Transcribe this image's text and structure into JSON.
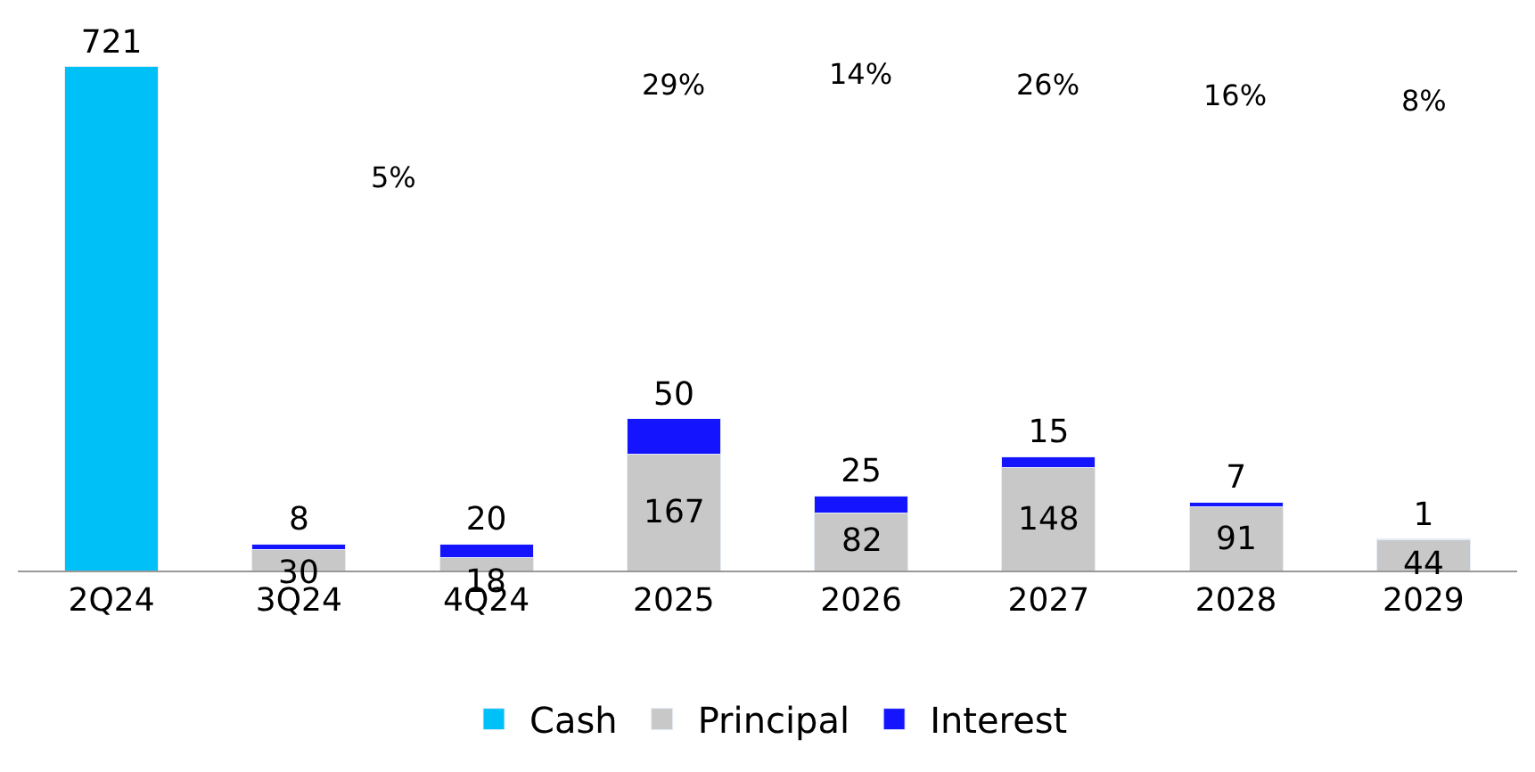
{
  "chart_data": {
    "type": "bar",
    "stacked": true,
    "data_labels": true,
    "legend": "bottom",
    "categories": [
      "2Q24",
      "3Q24",
      "4Q24",
      "2025",
      "2026",
      "2027",
      "2028",
      "2029"
    ],
    "series": [
      {
        "name": "Cash",
        "color": "#00c0f8",
        "values": [
          721,
          null,
          null,
          null,
          null,
          null,
          null,
          null
        ]
      },
      {
        "name": "Principal",
        "color": "#c8c8c8",
        "values": [
          null,
          30,
          18,
          167,
          82,
          148,
          91,
          44
        ]
      },
      {
        "name": "Interest",
        "color": "#1414ff",
        "values": [
          null,
          8,
          20,
          50,
          25,
          15,
          7,
          1
        ]
      }
    ],
    "annotations": [
      "5%",
      "29%",
      "14%",
      "26%",
      "16%",
      "8%"
    ]
  }
}
